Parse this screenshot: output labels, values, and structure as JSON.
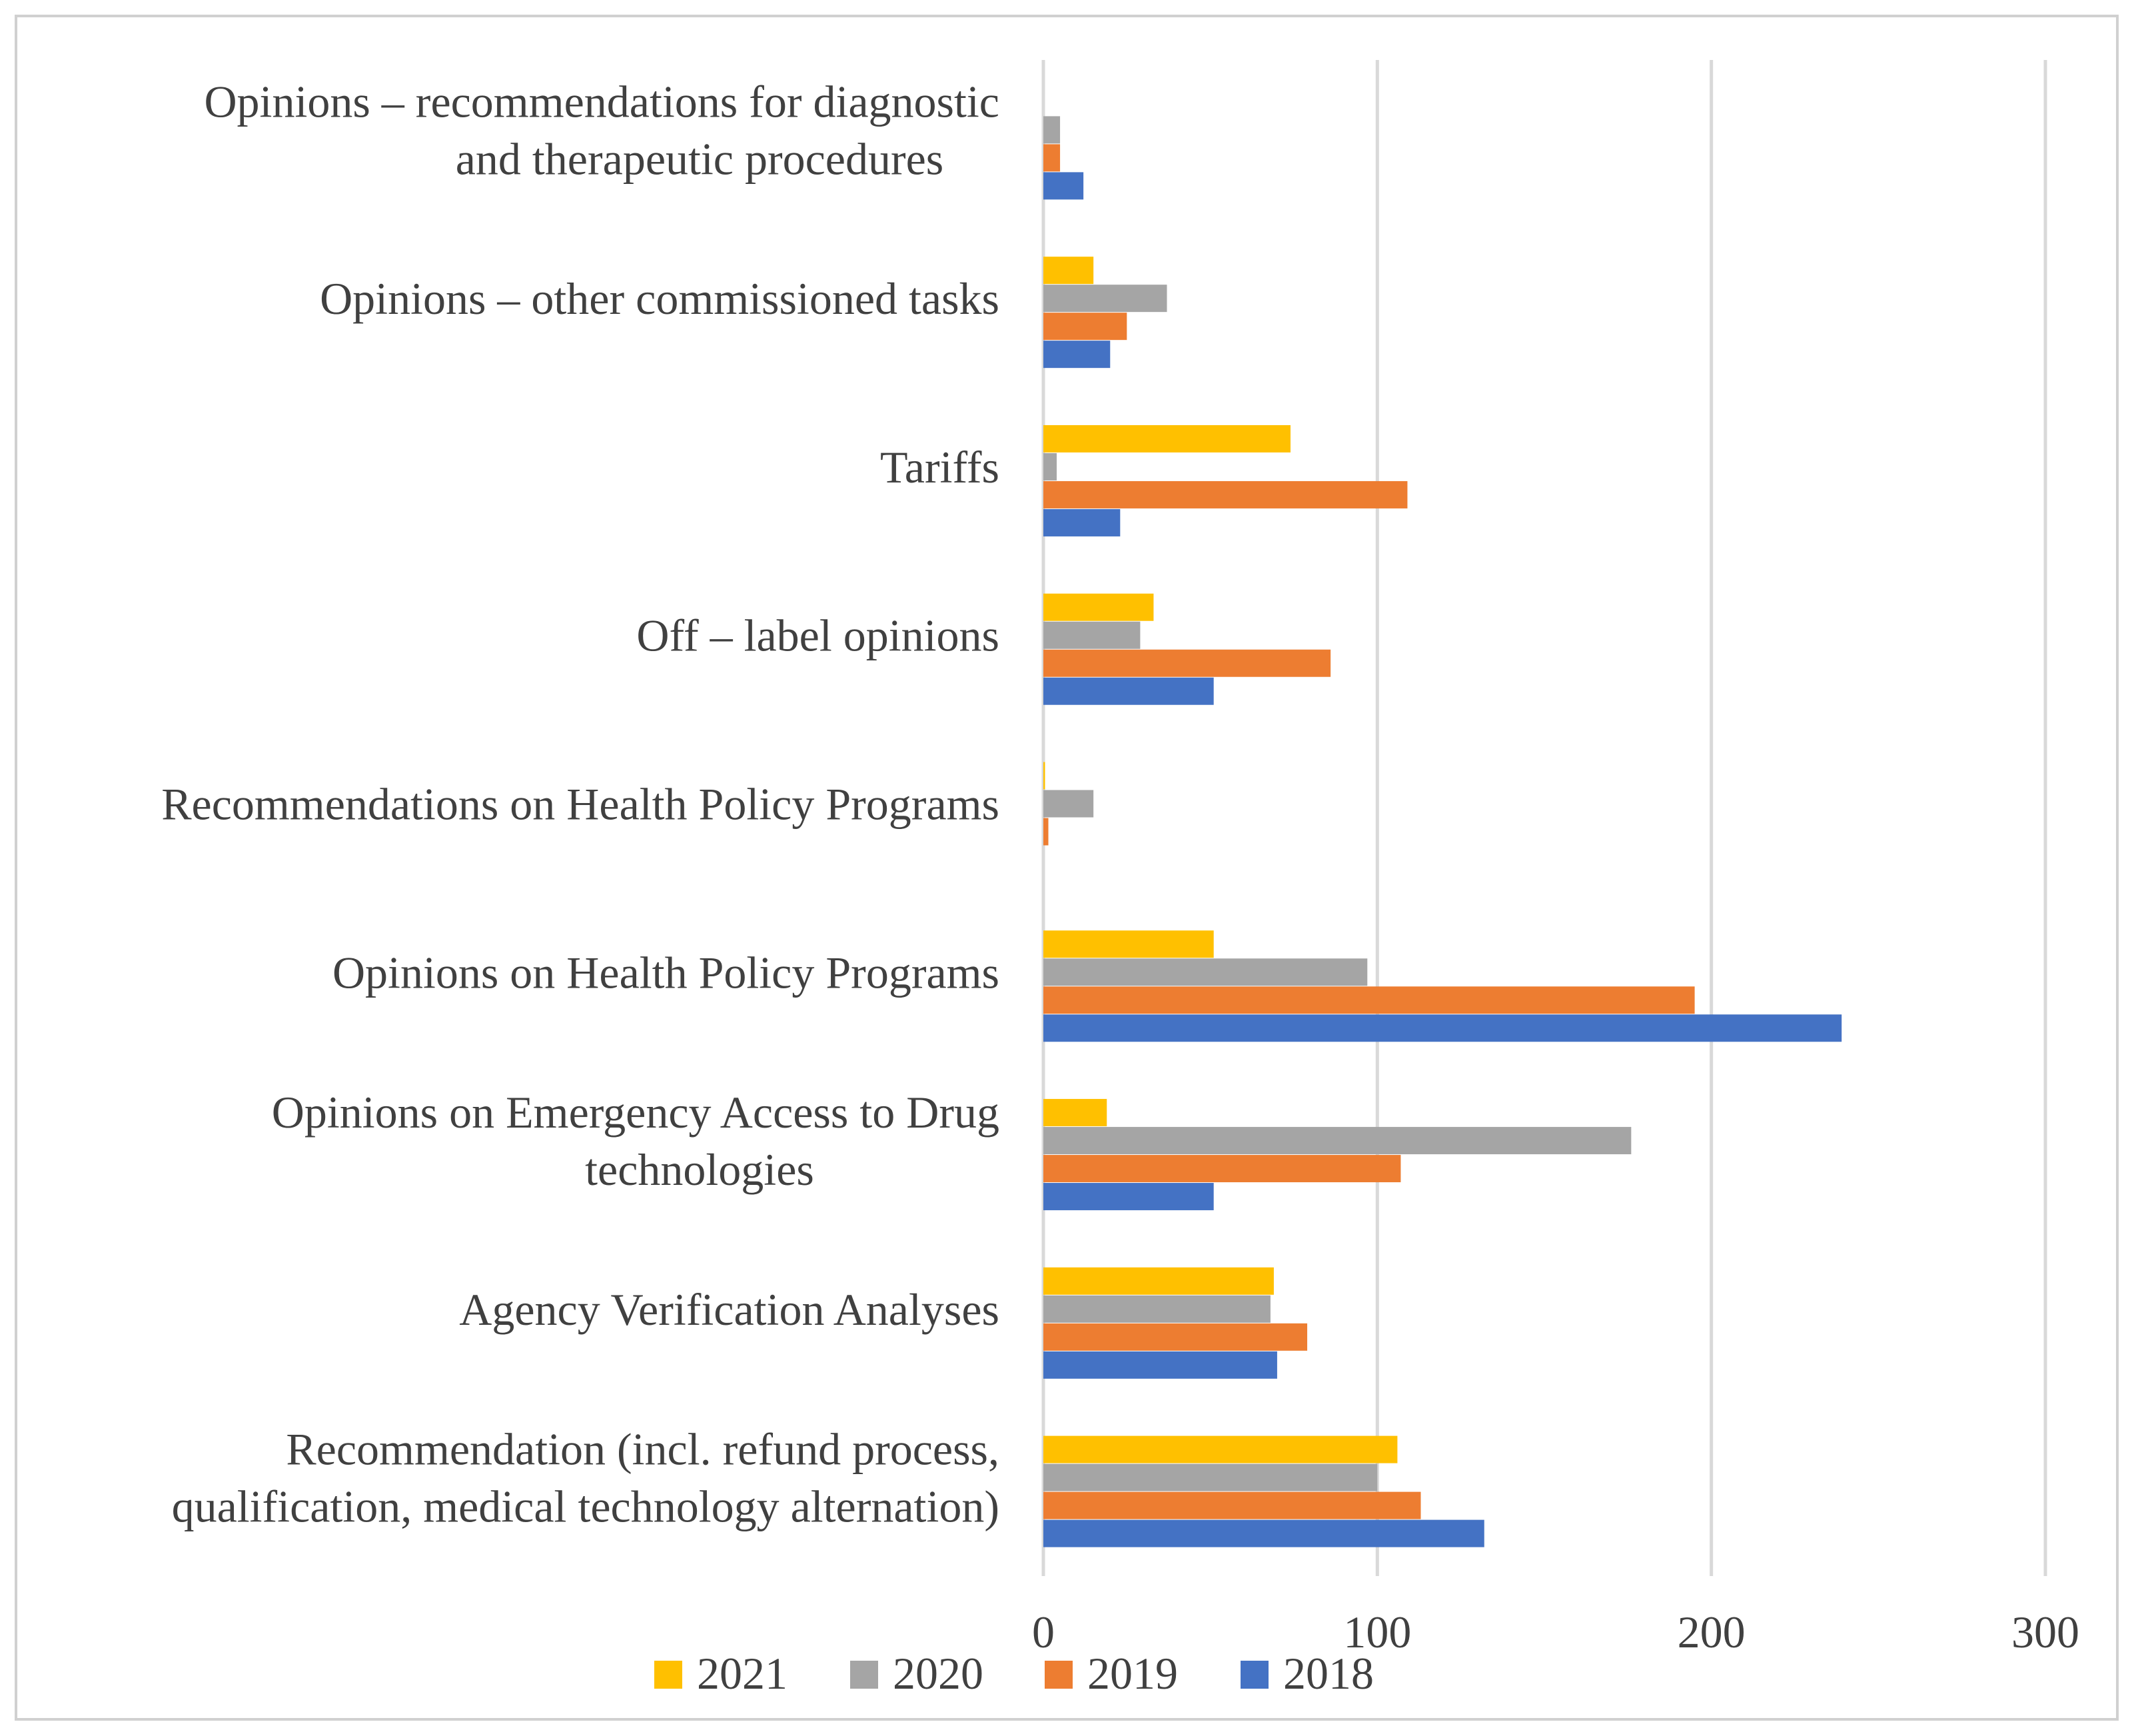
{
  "chart_data": {
    "type": "bar",
    "orientation": "horizontal",
    "title": "",
    "xlabel": "",
    "ylabel": "",
    "xlim": [
      0,
      300
    ],
    "ticks": [
      "0",
      "100",
      "200",
      "300"
    ],
    "tick_values": [
      0,
      100,
      200,
      300
    ],
    "grid": true,
    "legend_position": "bottom",
    "categories": [
      {
        "lines": [
          "Opinions  –  recommendations for diagnostic",
          "and therapeutic procedures"
        ]
      },
      {
        "lines": [
          "Opinions  –  other commissioned tasks"
        ]
      },
      {
        "lines": [
          "Tariffs"
        ]
      },
      {
        "lines": [
          "Off  – label opinions"
        ]
      },
      {
        "lines": [
          "Recommendations on Health Policy Programs"
        ]
      },
      {
        "lines": [
          "Opinions on Health Policy Programs"
        ]
      },
      {
        "lines": [
          "Opinions on Emergency Access to Drug",
          "technologies"
        ]
      },
      {
        "lines": [
          "Agency Verification Analyses"
        ]
      },
      {
        "lines": [
          "Recommendation (incl. refund process,",
          "qualification, medical technology alternation)"
        ]
      }
    ],
    "series": [
      {
        "name": "2021",
        "color": "#FFC000",
        "values": [
          0,
          15,
          74,
          33,
          0.5,
          51,
          19,
          69,
          106
        ]
      },
      {
        "name": "2020",
        "color": "#A5A5A5",
        "values": [
          5,
          37,
          4,
          29,
          15,
          97,
          176,
          68,
          100
        ]
      },
      {
        "name": "2019",
        "color": "#ED7D31",
        "values": [
          5,
          25,
          109,
          86,
          1.5,
          195,
          107,
          79,
          113
        ]
      },
      {
        "name": "2018",
        "color": "#4472C4",
        "values": [
          12,
          20,
          23,
          51,
          0,
          239,
          51,
          70,
          132
        ]
      }
    ],
    "legend_order": [
      "2021",
      "2020",
      "2019",
      "2018"
    ]
  }
}
